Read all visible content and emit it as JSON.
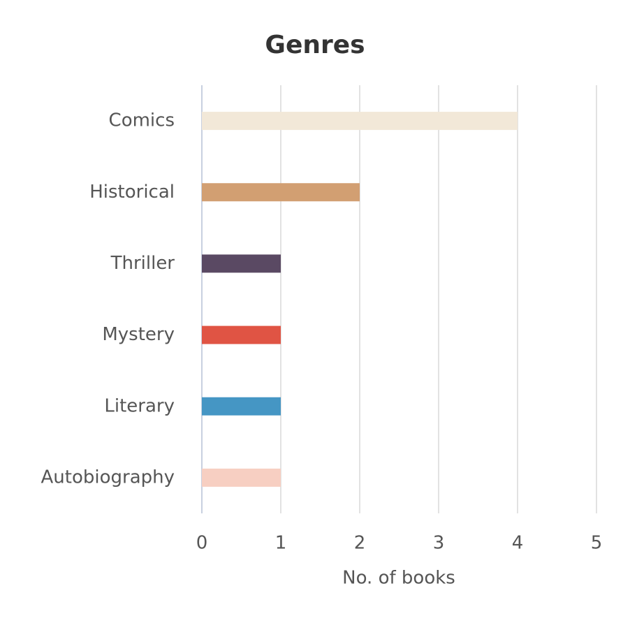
{
  "chart_data": {
    "type": "barh",
    "title": "Genres",
    "xlabel": "No. of books",
    "categories": [
      "Comics",
      "Historical",
      "Thriller",
      "Mystery",
      "Literary",
      "Autobiography"
    ],
    "values": [
      4,
      2,
      1,
      1,
      1,
      1
    ],
    "colors": [
      "#f2e8d8",
      "#d29f72",
      "#5a4963",
      "#e05444",
      "#4596c4",
      "#f7cfc2"
    ],
    "xlim": [
      0,
      5
    ],
    "xticks": [
      0,
      1,
      2,
      3,
      4,
      5
    ],
    "grid": true
  }
}
